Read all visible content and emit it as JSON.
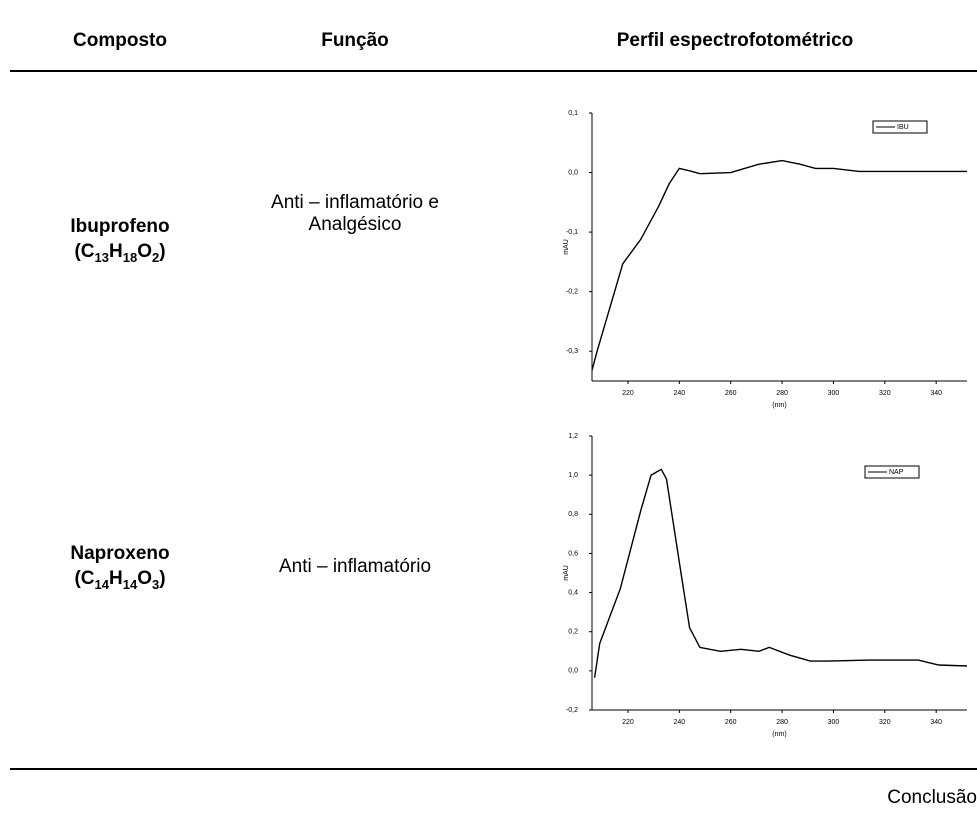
{
  "table": {
    "headers": [
      "Composto",
      "Função",
      "Perfil espectrofotométrico"
    ],
    "rows": [
      {
        "name": "Ibuprofeno",
        "formula": [
          "(C",
          "13",
          "H",
          "18",
          "O",
          "2",
          ")"
        ],
        "function": "Anti – inflamatório e Analgésico",
        "chart": {
          "type": "line",
          "xlabel": "(nm)",
          "ylabel": "mAU",
          "legend": "IBU",
          "color": "#000000",
          "x": [
            206,
            208,
            218,
            225,
            232,
            236,
            240,
            244,
            248,
            260,
            271,
            280,
            287,
            293,
            300,
            310,
            352
          ],
          "y": [
            -0.332,
            -0.3,
            -0.153,
            -0.112,
            -0.056,
            -0.019,
            0.007,
            0.003,
            -0.002,
            0,
            0.014,
            0.02,
            0.014,
            0.007,
            0.007,
            0.002,
            0.002
          ],
          "xlim": [
            206,
            352
          ],
          "ylim": [
            -0.35,
            0.1
          ],
          "xticks": [
            220,
            240,
            260,
            280,
            300,
            320,
            340
          ],
          "yticks": [
            {
              "value": 0.1,
              "label": "0,1"
            },
            {
              "value": 0,
              "label": "0,0"
            },
            {
              "value": -0.1,
              "label": "-0,1"
            },
            {
              "value": -0.2,
              "label": "-0,2"
            },
            {
              "value": -0.3,
              "label": "-0,3"
            }
          ]
        }
      },
      {
        "name": "Naproxeno",
        "formula": [
          "(C",
          "14",
          "H",
          "14",
          "O",
          "3",
          ")"
        ],
        "function": "Anti – inflamatório",
        "chart": {
          "type": "line",
          "xlabel": "(nm)",
          "ylabel": "mAU",
          "legend": "NAP",
          "color": "#000000",
          "x": [
            207,
            209,
            217,
            225,
            229,
            233,
            235,
            241,
            244,
            248,
            256,
            264,
            271,
            275,
            283,
            291,
            298,
            314,
            333,
            341,
            352
          ],
          "y": [
            -0.035,
            0.14,
            0.42,
            0.82,
            1.0,
            1.03,
            0.98,
            0.47,
            0.22,
            0.12,
            0.1,
            0.11,
            0.1,
            0.12,
            0.08,
            0.05,
            0.05,
            0.055,
            0.055,
            0.03,
            0.025
          ],
          "xlim": [
            206,
            352
          ],
          "ylim": [
            -0.2,
            1.2
          ],
          "xticks": [
            220,
            240,
            260,
            280,
            300,
            320,
            340
          ],
          "yticks": [
            {
              "value": 1.2,
              "label": "1,2"
            },
            {
              "value": 1.0,
              "label": "1,0"
            },
            {
              "value": 0.8,
              "label": "0,8"
            },
            {
              "value": 0.6,
              "label": "0,6"
            },
            {
              "value": 0.4,
              "label": "0,4"
            },
            {
              "value": 0.2,
              "label": "0,2"
            },
            {
              "value": 0,
              "label": "0,0"
            },
            {
              "value": -0.2,
              "label": "-0,2"
            }
          ]
        }
      }
    ]
  },
  "footer": "Conclusão"
}
